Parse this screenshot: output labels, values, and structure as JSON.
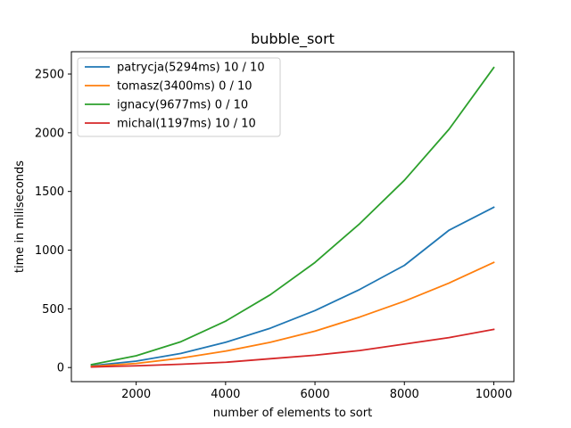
{
  "chart_data": {
    "type": "line",
    "title": "bubble_sort",
    "xlabel": "number of elements to sort",
    "ylabel": "time in miliseconds",
    "xlim": [
      550,
      10450
    ],
    "ylim": [
      -120,
      2690
    ],
    "xticks": [
      2000,
      4000,
      6000,
      8000,
      10000
    ],
    "yticks": [
      0,
      500,
      1000,
      1500,
      2000,
      2500
    ],
    "grid": false,
    "legend_position": "top-left",
    "x": [
      1000,
      2000,
      3000,
      4000,
      5000,
      6000,
      7000,
      8000,
      9000,
      10000
    ],
    "series": [
      {
        "name": "patrycja(5294ms) 10 / 10",
        "color": "#1f77b4",
        "values": [
          15,
          55,
          120,
          215,
          335,
          485,
          665,
          870,
          1170,
          1365
        ]
      },
      {
        "name": "tomasz(3400ms) 0 / 10",
        "color": "#ff7f0e",
        "values": [
          10,
          35,
          80,
          140,
          215,
          310,
          430,
          565,
          720,
          895
        ]
      },
      {
        "name": "ignacy(9677ms) 0 / 10",
        "color": "#2ca02c",
        "values": [
          25,
          100,
          220,
          395,
          620,
          895,
          1225,
          1595,
          2030,
          2555
        ]
      },
      {
        "name": "michal(1197ms) 10 / 10",
        "color": "#d62728",
        "values": [
          5,
          15,
          28,
          45,
          75,
          105,
          145,
          200,
          255,
          325
        ]
      }
    ]
  }
}
